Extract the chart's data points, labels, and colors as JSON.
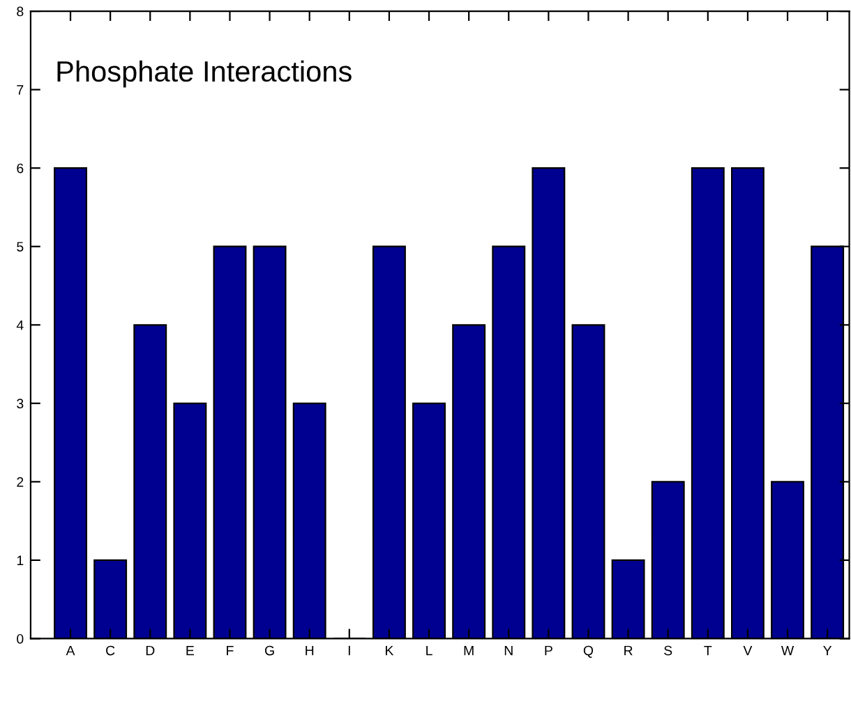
{
  "chart_data": {
    "type": "bar",
    "title": "Phosphate Interactions",
    "categories": [
      "A",
      "C",
      "D",
      "E",
      "F",
      "G",
      "H",
      "I",
      "K",
      "L",
      "M",
      "N",
      "P",
      "Q",
      "R",
      "S",
      "T",
      "V",
      "W",
      "Y"
    ],
    "values": [
      6,
      1,
      4,
      3,
      5,
      5,
      3,
      0,
      5,
      3,
      4,
      5,
      6,
      4,
      1,
      2,
      6,
      6,
      2,
      5
    ],
    "color": "#000090",
    "ylim": [
      0,
      8
    ],
    "yticks": [
      0,
      1,
      2,
      3,
      4,
      5,
      6,
      7,
      8
    ],
    "grid": false,
    "legend": false
  }
}
